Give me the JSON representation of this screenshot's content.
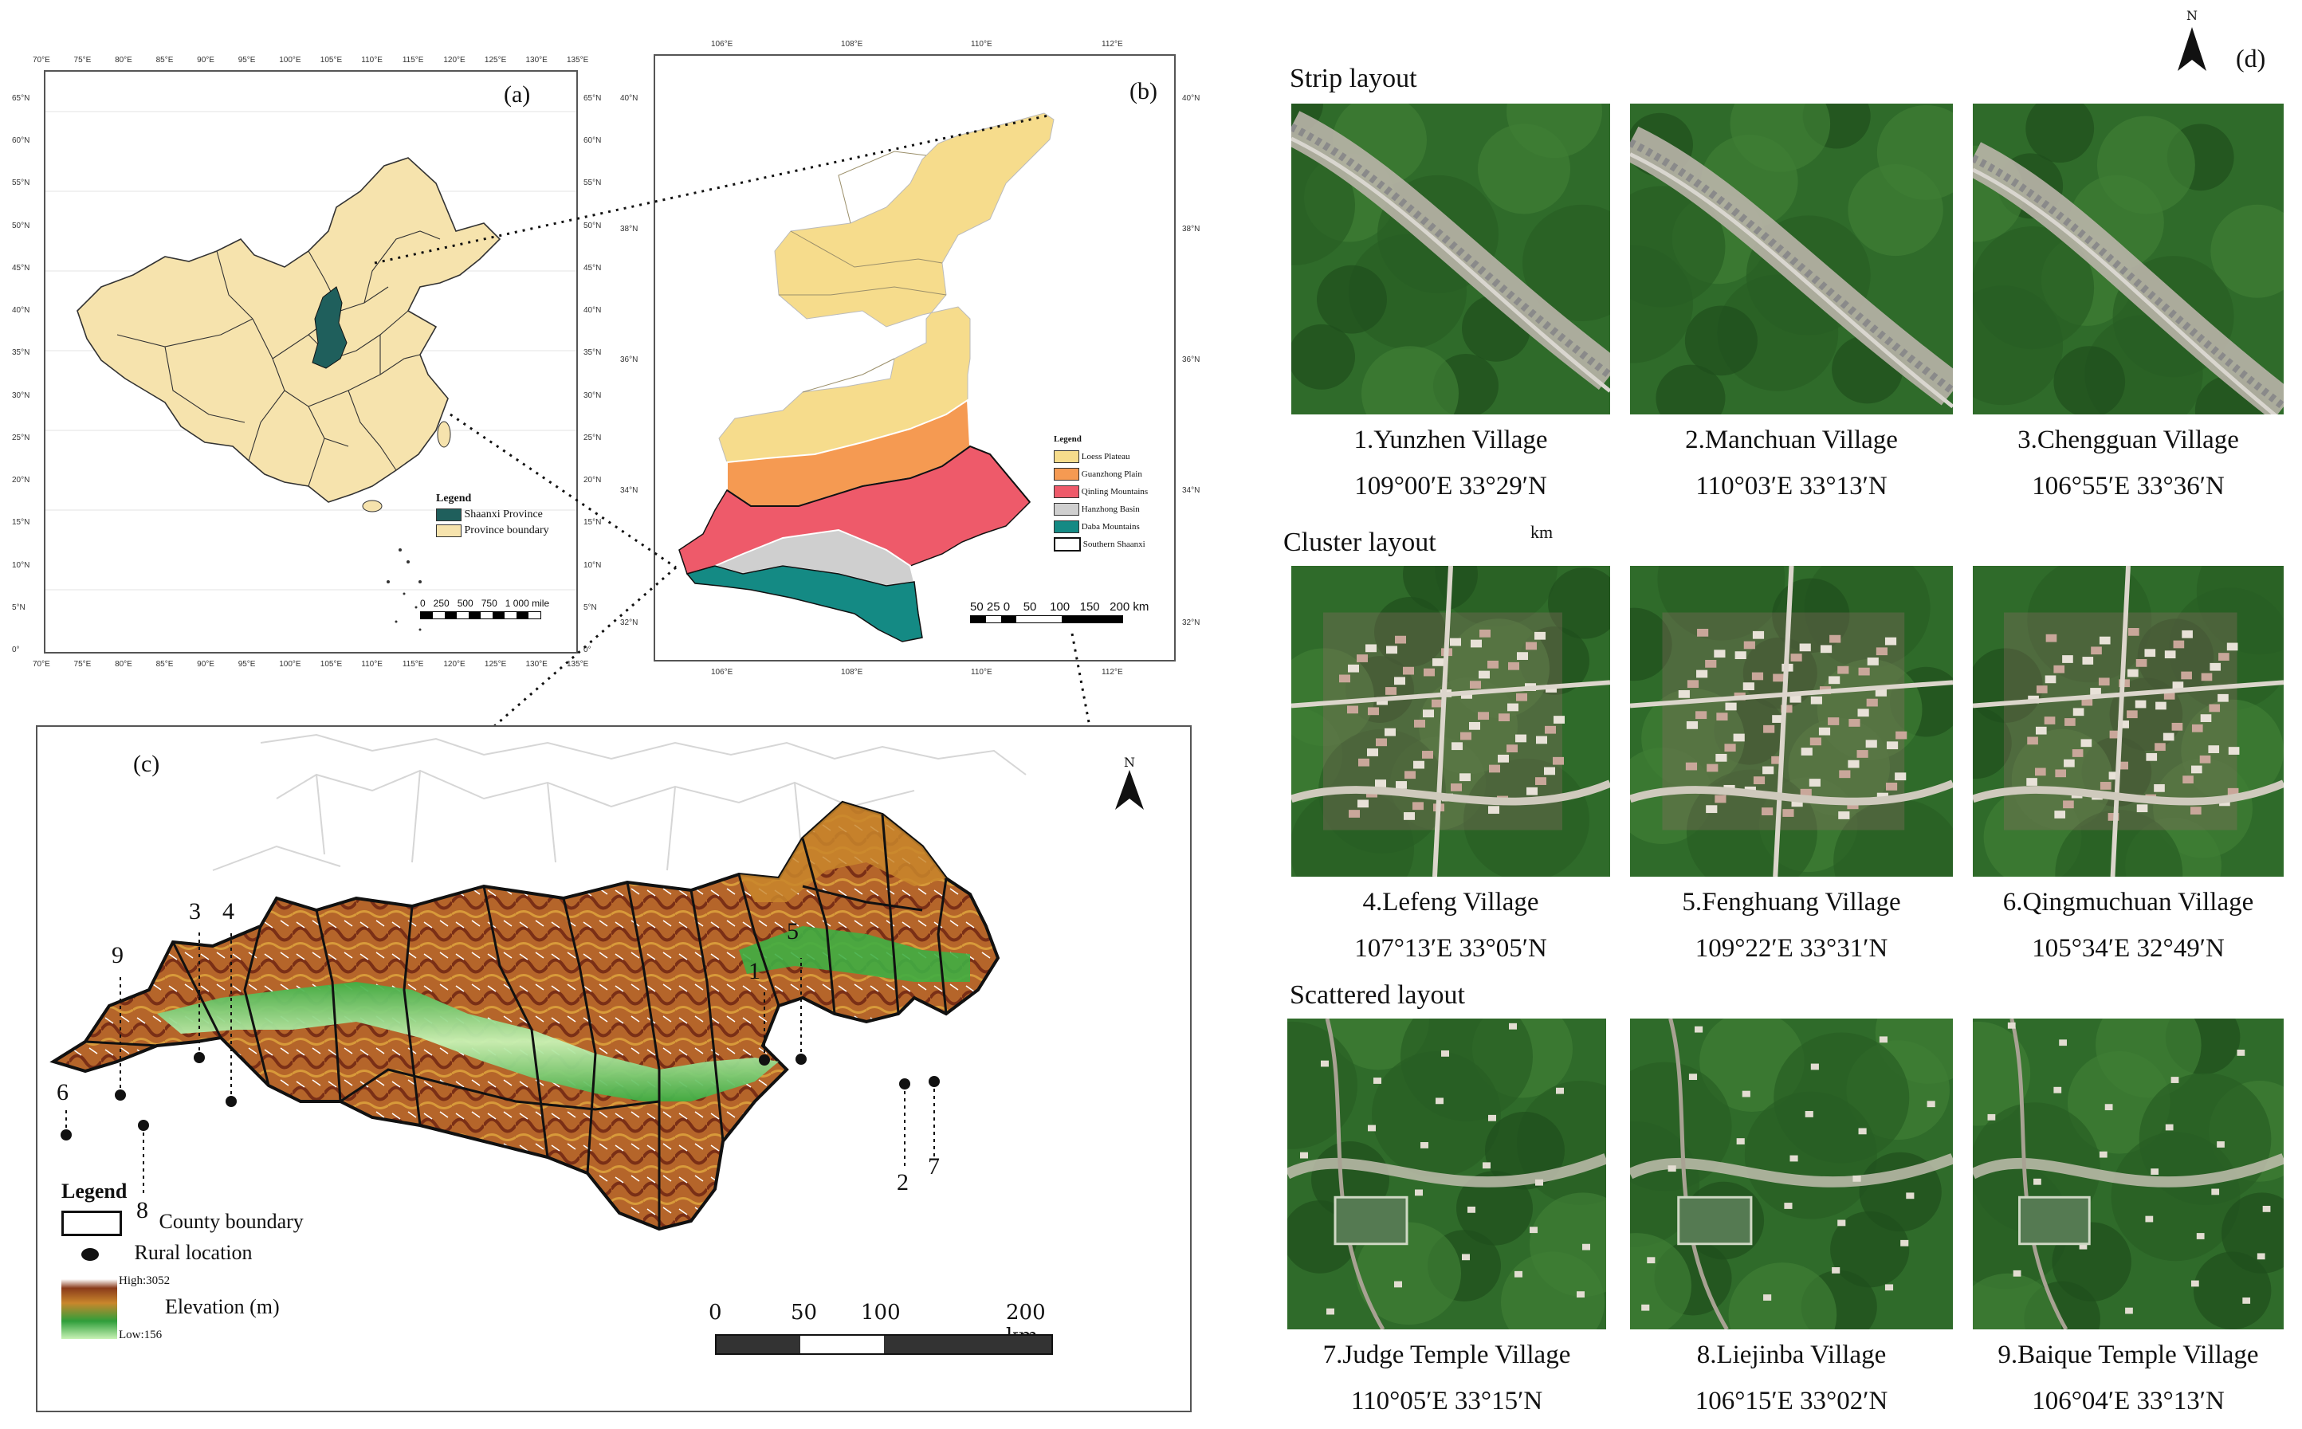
{
  "panel_a": {
    "label": "(a)",
    "lon_ticks": [
      "70°E",
      "75°E",
      "80°E",
      "85°E",
      "90°E",
      "95°E",
      "100°E",
      "105°E",
      "110°E",
      "115°E",
      "120°E",
      "125°E",
      "130°E",
      "135°E"
    ],
    "lat_ticks_left": [
      "65°N",
      "60°N",
      "55°N",
      "50°N",
      "45°N",
      "40°N",
      "35°N",
      "30°N",
      "25°N",
      "20°N",
      "15°N",
      "10°N",
      "5°N",
      "0°"
    ],
    "lat_ticks_right": [
      "65°N",
      "60°N",
      "55°N",
      "50°N",
      "45°N",
      "40°N",
      "35°N",
      "30°N",
      "25°N",
      "20°N",
      "15°N",
      "10°N",
      "5°N",
      "0°"
    ],
    "legend_title": "Legend",
    "legend": [
      {
        "label": "Shaanxi Province",
        "color": "#1f5f5c"
      },
      {
        "label": "Province boundary",
        "color": "#f6e3ad"
      }
    ],
    "scale_text": "0   250   500   750   1 000 mile"
  },
  "panel_b": {
    "label": "(b)",
    "lon_ticks_top": [
      "106°E",
      "108°E",
      "110°E",
      "112°E"
    ],
    "lon_ticks_bottom": [
      "106°E",
      "108°E",
      "110°E",
      "112°E"
    ],
    "lat_ticks_left": [
      "40°N",
      "38°N",
      "36°N",
      "34°N",
      "32°N"
    ],
    "lat_ticks_right": [
      "40°N",
      "38°N",
      "36°N",
      "34°N",
      "32°N"
    ],
    "legend_title": "Legend",
    "legend": [
      {
        "label": "Loess Plateau",
        "color": "#f6dc8c"
      },
      {
        "label": "Guanzhong Plain",
        "color": "#f59a52"
      },
      {
        "label": "Qinling Mountains",
        "color": "#ee5a6a"
      },
      {
        "label": "Hanzhong Basin",
        "color": "#cfcfcf"
      },
      {
        "label": "Daba Mountains",
        "color": "#148a84"
      },
      {
        "label": "Southern Shaanxi",
        "color": "#ffffff"
      }
    ],
    "scale_text": "50 25 0    50    100   150   200 km"
  },
  "panel_c": {
    "label": "(c)",
    "north": "N",
    "village_numbers": [
      "1",
      "2",
      "3",
      "4",
      "5",
      "6",
      "7",
      "8",
      "9"
    ],
    "legend_title": "Legend",
    "legend_county": "County boundary",
    "legend_rural": "Rural location",
    "elev_high": "High:3052",
    "elev_low": "Low:156",
    "elev_label": "Elevation (m)",
    "scale_labels": [
      "0",
      "50",
      "100",
      "200 km"
    ],
    "colors": {
      "high": "#8a3b1b",
      "mid": "#c9862c",
      "low": "#2f9e3a",
      "lowest": "#c8f2b5",
      "snow": "#ffffff"
    }
  },
  "panel_d": {
    "label": "(d)",
    "north": "N",
    "km_label": "km",
    "sections": [
      {
        "title": "Strip layout",
        "villages": [
          {
            "name": "1.Yunzhen Village",
            "coord": "109°00′E 33°29′N",
            "style": "strip"
          },
          {
            "name": "2.Manchuan Village",
            "coord": "110°03′E 33°13′N",
            "style": "strip"
          },
          {
            "name": "3.Chengguan Village",
            "coord": "106°55′E 33°36′N",
            "style": "strip"
          }
        ]
      },
      {
        "title": "Cluster layout",
        "villages": [
          {
            "name": "4.Lefeng Village",
            "coord": "107°13′E 33°05′N",
            "style": "cluster"
          },
          {
            "name": "5.Fenghuang Village",
            "coord": "109°22′E 33°31′N",
            "style": "cluster"
          },
          {
            "name": "6.Qingmuchuan Village",
            "coord": "105°34′E 32°49′N",
            "style": "cluster"
          }
        ]
      },
      {
        "title": "Scattered layout",
        "villages": [
          {
            "name": "7.Judge Temple Village",
            "coord": "110°05′E 33°15′N",
            "style": "scatter"
          },
          {
            "name": "8.Liejinba Village",
            "coord": "106°15′E 33°02′N",
            "style": "scatter"
          },
          {
            "name": "9.Baique Temple Village",
            "coord": "106°04′E 33°13′N",
            "style": "scatter"
          }
        ]
      }
    ]
  }
}
